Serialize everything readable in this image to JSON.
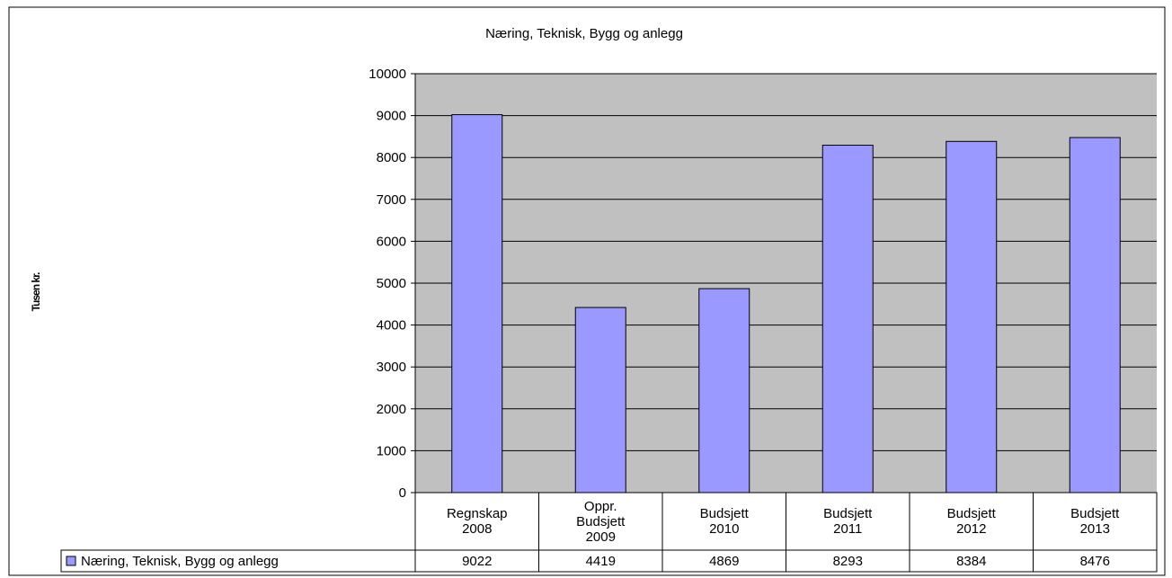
{
  "chart_data": {
    "type": "bar",
    "title": "Næring, Teknisk, Bygg og anlegg",
    "y_label": "Tusen kr.",
    "categories": [
      "Regnskap 2008",
      "Oppr. Budsjett 2009",
      "Budsjett 2010",
      "Budsjett 2011",
      "Budsjett 2012",
      "Budsjett 2013"
    ],
    "series": [
      {
        "name": "Næring, Teknisk, Bygg og anlegg",
        "color": "#9999ff",
        "values": [
          9022,
          4419,
          4869,
          8293,
          8384,
          8476
        ]
      }
    ],
    "ylim": [
      0,
      10000
    ],
    "yticks": [
      0,
      1000,
      2000,
      3000,
      4000,
      5000,
      6000,
      7000,
      8000,
      9000,
      10000
    ],
    "grid": true,
    "data_table": true
  }
}
